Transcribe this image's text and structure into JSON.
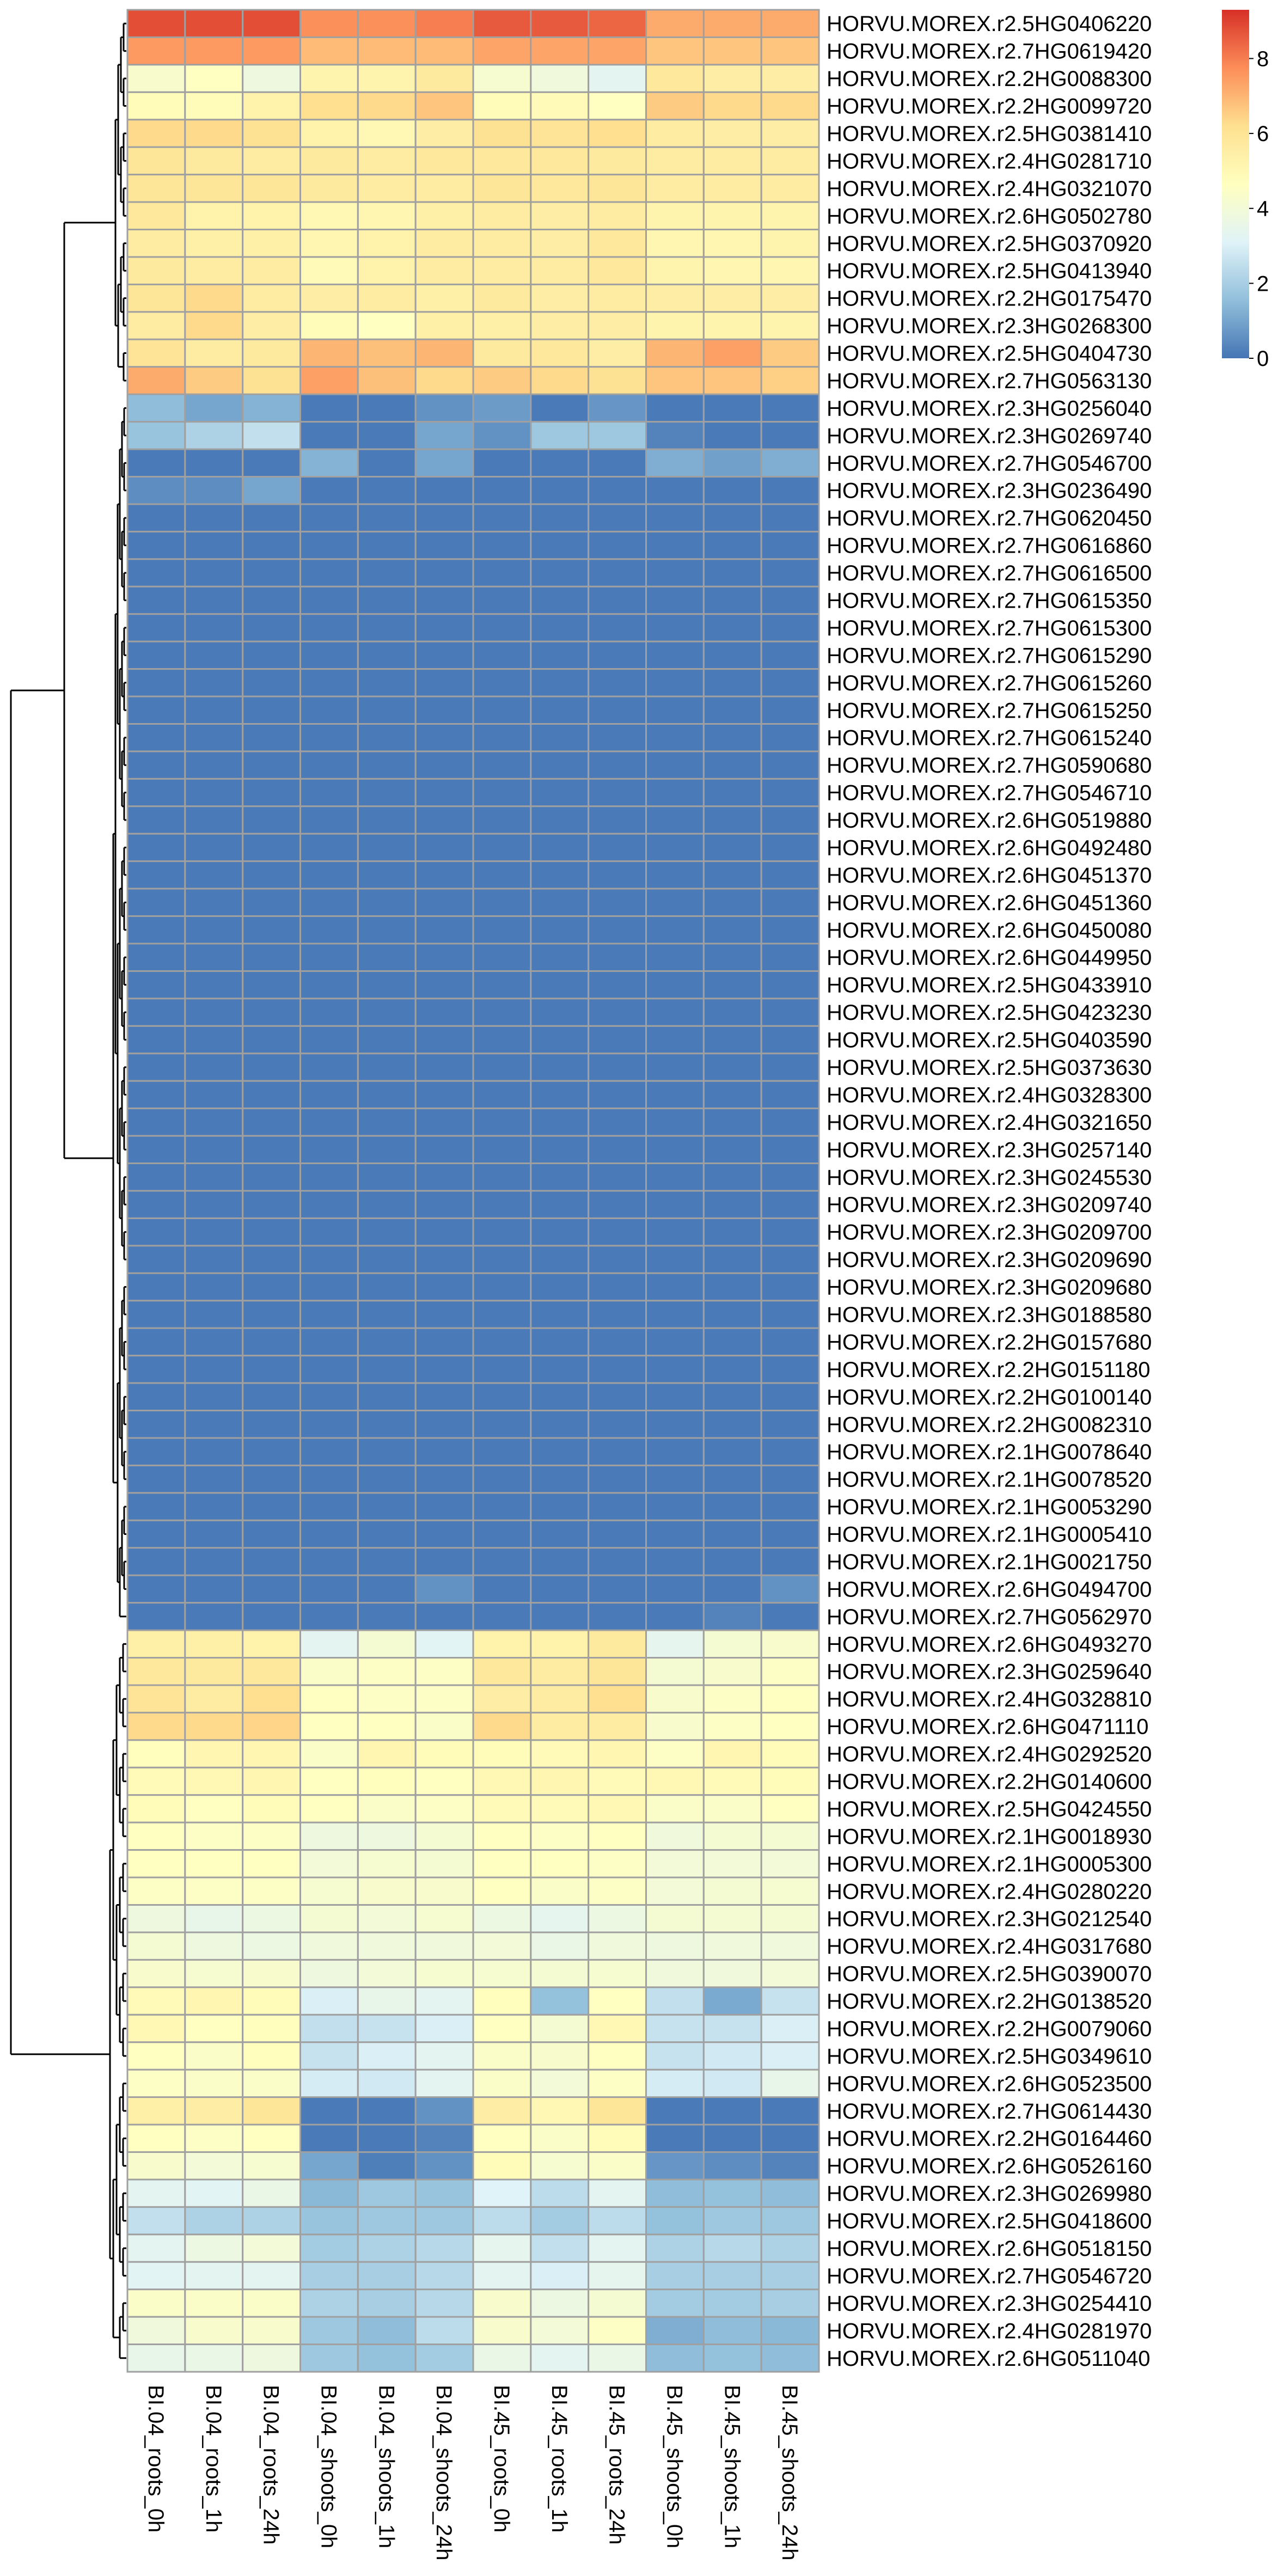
{
  "chart_data": {
    "type": "heatmap",
    "title": "",
    "xlabel": "",
    "ylabel": "",
    "columns": [
      "BI.04_roots_0h",
      "BI.04_roots_1h",
      "BI.04_roots_24h",
      "BI.04_shoots_0h",
      "BI.04_shoots_1h",
      "BI.04_shoots_24h",
      "BI.45_roots_0h",
      "BI.45_roots_1h",
      "BI.45_roots_24h",
      "BI.45_shoots_0h",
      "BI.45_shoots_1h",
      "BI.45_shoots_24h"
    ],
    "rows": [
      "HORVU.MOREX.r2.5HG0406220",
      "HORVU.MOREX.r2.7HG0619420",
      "HORVU.MOREX.r2.2HG0088300",
      "HORVU.MOREX.r2.2HG0099720",
      "HORVU.MOREX.r2.5HG0381410",
      "HORVU.MOREX.r2.4HG0281710",
      "HORVU.MOREX.r2.4HG0321070",
      "HORVU.MOREX.r2.6HG0502780",
      "HORVU.MOREX.r2.5HG0370920",
      "HORVU.MOREX.r2.5HG0413940",
      "HORVU.MOREX.r2.2HG0175470",
      "HORVU.MOREX.r2.3HG0268300",
      "HORVU.MOREX.r2.5HG0404730",
      "HORVU.MOREX.r2.7HG0563130",
      "HORVU.MOREX.r2.3HG0256040",
      "HORVU.MOREX.r2.3HG0269740",
      "HORVU.MOREX.r2.7HG0546700",
      "HORVU.MOREX.r2.3HG0236490",
      "HORVU.MOREX.r2.7HG0620450",
      "HORVU.MOREX.r2.7HG0616860",
      "HORVU.MOREX.r2.7HG0616500",
      "HORVU.MOREX.r2.7HG0615350",
      "HORVU.MOREX.r2.7HG0615300",
      "HORVU.MOREX.r2.7HG0615290",
      "HORVU.MOREX.r2.7HG0615260",
      "HORVU.MOREX.r2.7HG0615250",
      "HORVU.MOREX.r2.7HG0615240",
      "HORVU.MOREX.r2.7HG0590680",
      "HORVU.MOREX.r2.7HG0546710",
      "HORVU.MOREX.r2.6HG0519880",
      "HORVU.MOREX.r2.6HG0492480",
      "HORVU.MOREX.r2.6HG0451370",
      "HORVU.MOREX.r2.6HG0451360",
      "HORVU.MOREX.r2.6HG0450080",
      "HORVU.MOREX.r2.6HG0449950",
      "HORVU.MOREX.r2.5HG0433910",
      "HORVU.MOREX.r2.5HG0423230",
      "HORVU.MOREX.r2.5HG0403590",
      "HORVU.MOREX.r2.5HG0373630",
      "HORVU.MOREX.r2.4HG0328300",
      "HORVU.MOREX.r2.4HG0321650",
      "HORVU.MOREX.r2.3HG0257140",
      "HORVU.MOREX.r2.3HG0245530",
      "HORVU.MOREX.r2.3HG0209740",
      "HORVU.MOREX.r2.3HG0209700",
      "HORVU.MOREX.r2.3HG0209690",
      "HORVU.MOREX.r2.3HG0209680",
      "HORVU.MOREX.r2.3HG0188580",
      "HORVU.MOREX.r2.2HG0157680",
      "HORVU.MOREX.r2.2HG0151180",
      "HORVU.MOREX.r2.2HG0100140",
      "HORVU.MOREX.r2.2HG0082310",
      "HORVU.MOREX.r2.1HG0078640",
      "HORVU.MOREX.r2.1HG0078520",
      "HORVU.MOREX.r2.1HG0053290",
      "HORVU.MOREX.r2.1HG0005410",
      "HORVU.MOREX.r2.1HG0021750",
      "HORVU.MOREX.r2.6HG0494700",
      "HORVU.MOREX.r2.7HG0562970",
      "HORVU.MOREX.r2.6HG0493270",
      "HORVU.MOREX.r2.3HG0259640",
      "HORVU.MOREX.r2.4HG0328810",
      "HORVU.MOREX.r2.6HG0471110",
      "HORVU.MOREX.r2.4HG0292520",
      "HORVU.MOREX.r2.2HG0140600",
      "HORVU.MOREX.r2.5HG0424550",
      "HORVU.MOREX.r2.1HG0018930",
      "HORVU.MOREX.r2.1HG0005300",
      "HORVU.MOREX.r2.4HG0280220",
      "HORVU.MOREX.r2.3HG0212540",
      "HORVU.MOREX.r2.4HG0317680",
      "HORVU.MOREX.r2.5HG0390070",
      "HORVU.MOREX.r2.2HG0138520",
      "HORVU.MOREX.r2.2HG0079060",
      "HORVU.MOREX.r2.5HG0349610",
      "HORVU.MOREX.r2.6HG0523500",
      "HORVU.MOREX.r2.7HG0614430",
      "HORVU.MOREX.r2.2HG0164460",
      "HORVU.MOREX.r2.6HG0526160",
      "HORVU.MOREX.r2.3HG0269980",
      "HORVU.MOREX.r2.5HG0418600",
      "HORVU.MOREX.r2.6HG0518150",
      "HORVU.MOREX.r2.7HG0546720",
      "HORVU.MOREX.r2.3HG0254410",
      "HORVU.MOREX.r2.4HG0281970",
      "HORVU.MOREX.r2.6HG0511040"
    ],
    "values": [
      [
        8.8,
        8.8,
        8.8,
        7.7,
        7.7,
        8.0,
        8.6,
        8.6,
        8.4,
        7.2,
        7.2,
        7.2
      ],
      [
        7.5,
        7.5,
        7.5,
        6.9,
        6.9,
        6.9,
        7.3,
        7.3,
        7.3,
        6.7,
        6.7,
        6.7
      ],
      [
        4.3,
        4.6,
        3.8,
        5.2,
        5.2,
        5.7,
        4.2,
        3.9,
        3.3,
        5.8,
        5.5,
        5.5
      ],
      [
        4.8,
        4.8,
        5.3,
        6.2,
        6.3,
        6.7,
        4.8,
        4.9,
        4.6,
        6.6,
        6.3,
        6.3
      ],
      [
        6.3,
        6.3,
        6.1,
        5.3,
        5.0,
        5.5,
        6.1,
        6.0,
        6.2,
        5.6,
        5.5,
        5.5
      ],
      [
        5.9,
        5.7,
        5.6,
        5.7,
        5.6,
        5.8,
        5.8,
        5.8,
        5.7,
        5.6,
        5.6,
        5.6
      ],
      [
        5.9,
        5.9,
        5.9,
        5.7,
        5.6,
        5.6,
        5.9,
        5.8,
        5.9,
        5.6,
        5.6,
        5.6
      ],
      [
        5.8,
        5.3,
        5.3,
        5.0,
        5.1,
        5.4,
        5.6,
        5.5,
        5.6,
        5.2,
        5.2,
        5.2
      ],
      [
        5.6,
        5.4,
        5.4,
        5.1,
        5.3,
        5.6,
        5.6,
        5.5,
        5.8,
        5.1,
        5.1,
        5.2
      ],
      [
        5.7,
        5.6,
        5.6,
        4.9,
        5.3,
        5.6,
        5.6,
        5.6,
        5.8,
        5.2,
        5.1,
        5.1
      ],
      [
        5.9,
        6.3,
        5.6,
        5.5,
        5.6,
        5.4,
        5.7,
        5.5,
        5.6,
        5.5,
        5.5,
        5.5
      ],
      [
        5.6,
        6.3,
        5.5,
        4.8,
        4.6,
        5.4,
        5.4,
        5.5,
        5.5,
        5.2,
        5.2,
        5.2
      ],
      [
        6.0,
        5.6,
        5.7,
        7.0,
        6.8,
        7.0,
        5.7,
        5.8,
        5.5,
        7.0,
        7.4,
        6.6
      ],
      [
        7.2,
        6.6,
        6.1,
        7.4,
        6.8,
        6.3,
        6.6,
        6.3,
        6.1,
        6.7,
        6.7,
        6.5
      ],
      [
        1.5,
        1.0,
        1.3,
        0.1,
        0.1,
        0.6,
        0.8,
        0.1,
        0.7,
        0.1,
        0.1,
        0.1
      ],
      [
        1.7,
        2.1,
        2.5,
        0.1,
        0.1,
        1.0,
        0.6,
        1.8,
        1.8,
        0.3,
        0.1,
        0.1
      ],
      [
        0.1,
        0.1,
        0.1,
        1.3,
        0.1,
        1.0,
        0.1,
        0.1,
        0.1,
        1.2,
        0.9,
        1.2
      ],
      [
        0.5,
        0.5,
        1.0,
        0.1,
        0.1,
        0.1,
        0.1,
        0.1,
        0.1,
        0.1,
        0.1,
        0.1
      ],
      [
        0.1,
        0.1,
        0.1,
        0.1,
        0.1,
        0.1,
        0.1,
        0.1,
        0.1,
        0.1,
        0.1,
        0.1
      ],
      [
        0.1,
        0.1,
        0.1,
        0.1,
        0.1,
        0.1,
        0.1,
        0.1,
        0.1,
        0.1,
        0.1,
        0.1
      ],
      [
        0.1,
        0.1,
        0.1,
        0.1,
        0.1,
        0.1,
        0.1,
        0.1,
        0.1,
        0.1,
        0.1,
        0.1
      ],
      [
        0.1,
        0.1,
        0.1,
        0.1,
        0.1,
        0.1,
        0.1,
        0.1,
        0.1,
        0.1,
        0.1,
        0.1
      ],
      [
        0.1,
        0.1,
        0.1,
        0.1,
        0.1,
        0.1,
        0.1,
        0.1,
        0.1,
        0.1,
        0.1,
        0.1
      ],
      [
        0.1,
        0.1,
        0.1,
        0.1,
        0.1,
        0.1,
        0.1,
        0.1,
        0.1,
        0.1,
        0.1,
        0.1
      ],
      [
        0.1,
        0.1,
        0.1,
        0.1,
        0.1,
        0.1,
        0.1,
        0.1,
        0.1,
        0.1,
        0.1,
        0.1
      ],
      [
        0.1,
        0.1,
        0.1,
        0.1,
        0.1,
        0.1,
        0.1,
        0.1,
        0.1,
        0.1,
        0.1,
        0.1
      ],
      [
        0.1,
        0.1,
        0.1,
        0.1,
        0.1,
        0.1,
        0.1,
        0.1,
        0.1,
        0.1,
        0.1,
        0.1
      ],
      [
        0.1,
        0.1,
        0.1,
        0.1,
        0.1,
        0.1,
        0.1,
        0.1,
        0.1,
        0.1,
        0.1,
        0.1
      ],
      [
        0.1,
        0.1,
        0.1,
        0.1,
        0.1,
        0.1,
        0.1,
        0.1,
        0.1,
        0.1,
        0.1,
        0.1
      ],
      [
        0.1,
        0.1,
        0.1,
        0.1,
        0.1,
        0.1,
        0.1,
        0.1,
        0.1,
        0.1,
        0.1,
        0.1
      ],
      [
        0.1,
        0.1,
        0.1,
        0.1,
        0.1,
        0.1,
        0.1,
        0.1,
        0.1,
        0.1,
        0.1,
        0.1
      ],
      [
        0.1,
        0.1,
        0.1,
        0.1,
        0.1,
        0.1,
        0.1,
        0.1,
        0.1,
        0.1,
        0.1,
        0.1
      ],
      [
        0.1,
        0.1,
        0.1,
        0.1,
        0.1,
        0.1,
        0.1,
        0.1,
        0.1,
        0.1,
        0.1,
        0.1
      ],
      [
        0.1,
        0.1,
        0.1,
        0.1,
        0.1,
        0.1,
        0.1,
        0.1,
        0.1,
        0.1,
        0.1,
        0.1
      ],
      [
        0.1,
        0.1,
        0.1,
        0.1,
        0.1,
        0.1,
        0.1,
        0.1,
        0.1,
        0.1,
        0.1,
        0.1
      ],
      [
        0.1,
        0.1,
        0.1,
        0.1,
        0.1,
        0.1,
        0.1,
        0.1,
        0.1,
        0.1,
        0.1,
        0.1
      ],
      [
        0.1,
        0.1,
        0.1,
        0.1,
        0.1,
        0.1,
        0.1,
        0.1,
        0.1,
        0.1,
        0.1,
        0.1
      ],
      [
        0.1,
        0.1,
        0.1,
        0.1,
        0.1,
        0.1,
        0.1,
        0.1,
        0.1,
        0.1,
        0.1,
        0.1
      ],
      [
        0.1,
        0.1,
        0.1,
        0.1,
        0.1,
        0.1,
        0.1,
        0.1,
        0.1,
        0.1,
        0.1,
        0.1
      ],
      [
        0.1,
        0.1,
        0.1,
        0.1,
        0.1,
        0.1,
        0.1,
        0.1,
        0.1,
        0.1,
        0.1,
        0.1
      ],
      [
        0.1,
        0.1,
        0.1,
        0.1,
        0.1,
        0.1,
        0.1,
        0.1,
        0.1,
        0.1,
        0.1,
        0.1
      ],
      [
        0.1,
        0.1,
        0.1,
        0.1,
        0.1,
        0.1,
        0.1,
        0.1,
        0.1,
        0.1,
        0.1,
        0.1
      ],
      [
        0.1,
        0.1,
        0.1,
        0.1,
        0.1,
        0.1,
        0.1,
        0.1,
        0.1,
        0.1,
        0.1,
        0.1
      ],
      [
        0.1,
        0.1,
        0.1,
        0.1,
        0.1,
        0.1,
        0.1,
        0.1,
        0.1,
        0.1,
        0.1,
        0.1
      ],
      [
        0.1,
        0.1,
        0.1,
        0.1,
        0.1,
        0.1,
        0.1,
        0.1,
        0.1,
        0.1,
        0.1,
        0.1
      ],
      [
        0.1,
        0.1,
        0.1,
        0.1,
        0.1,
        0.1,
        0.1,
        0.1,
        0.1,
        0.1,
        0.1,
        0.1
      ],
      [
        0.1,
        0.1,
        0.1,
        0.1,
        0.1,
        0.1,
        0.1,
        0.1,
        0.1,
        0.1,
        0.1,
        0.1
      ],
      [
        0.1,
        0.1,
        0.1,
        0.1,
        0.1,
        0.1,
        0.1,
        0.1,
        0.1,
        0.1,
        0.1,
        0.1
      ],
      [
        0.1,
        0.1,
        0.1,
        0.1,
        0.1,
        0.1,
        0.1,
        0.1,
        0.1,
        0.1,
        0.1,
        0.1
      ],
      [
        0.1,
        0.1,
        0.1,
        0.1,
        0.1,
        0.1,
        0.1,
        0.1,
        0.1,
        0.1,
        0.1,
        0.1
      ],
      [
        0.1,
        0.1,
        0.1,
        0.1,
        0.1,
        0.1,
        0.1,
        0.1,
        0.1,
        0.1,
        0.1,
        0.1
      ],
      [
        0.1,
        0.1,
        0.1,
        0.1,
        0.1,
        0.1,
        0.1,
        0.1,
        0.1,
        0.1,
        0.1,
        0.1
      ],
      [
        0.1,
        0.1,
        0.1,
        0.1,
        0.1,
        0.1,
        0.1,
        0.1,
        0.1,
        0.1,
        0.1,
        0.1
      ],
      [
        0.1,
        0.1,
        0.1,
        0.1,
        0.1,
        0.1,
        0.1,
        0.1,
        0.1,
        0.1,
        0.1,
        0.1
      ],
      [
        0.1,
        0.1,
        0.1,
        0.1,
        0.1,
        0.1,
        0.1,
        0.1,
        0.1,
        0.1,
        0.1,
        0.1
      ],
      [
        0.1,
        0.1,
        0.1,
        0.1,
        0.1,
        0.1,
        0.1,
        0.1,
        0.1,
        0.1,
        0.1,
        0.1
      ],
      [
        0.1,
        0.1,
        0.1,
        0.1,
        0.1,
        0.1,
        0.1,
        0.1,
        0.1,
        0.1,
        0.1,
        0.1
      ],
      [
        0.1,
        0.1,
        0.1,
        0.1,
        0.1,
        0.6,
        0.1,
        0.1,
        0.1,
        0.1,
        0.1,
        0.6
      ],
      [
        0.1,
        0.1,
        0.1,
        0.1,
        0.1,
        0.1,
        0.1,
        0.1,
        0.1,
        0.1,
        0.3,
        0.1
      ],
      [
        5.4,
        5.4,
        5.3,
        3.3,
        4.1,
        3.2,
        5.3,
        5.3,
        5.7,
        3.4,
        4.1,
        4.3
      ],
      [
        5.8,
        5.7,
        5.8,
        4.4,
        4.5,
        4.5,
        5.8,
        5.6,
        5.9,
        4.1,
        4.3,
        4.5
      ],
      [
        6.0,
        5.6,
        6.2,
        4.6,
        4.5,
        4.5,
        5.5,
        5.6,
        6.2,
        4.3,
        4.5,
        4.6
      ],
      [
        6.3,
        6.3,
        6.4,
        4.6,
        4.6,
        4.4,
        6.3,
        5.6,
        5.6,
        4.3,
        4.5,
        4.6
      ],
      [
        4.7,
        5.1,
        5.1,
        4.4,
        5.1,
        4.8,
        4.8,
        4.9,
        5.1,
        4.5,
        5.1,
        4.8
      ],
      [
        4.9,
        5.0,
        5.1,
        4.6,
        4.7,
        4.6,
        5.0,
        5.1,
        4.9,
        5.0,
        4.9,
        4.8
      ],
      [
        4.8,
        4.6,
        4.8,
        4.6,
        4.4,
        4.5,
        4.9,
        4.9,
        5.0,
        4.4,
        4.4,
        4.6
      ],
      [
        4.6,
        4.5,
        4.5,
        3.8,
        3.8,
        4.1,
        4.6,
        4.5,
        4.6,
        3.9,
        4.1,
        4.1
      ],
      [
        4.6,
        4.6,
        4.6,
        4.0,
        4.2,
        4.1,
        4.6,
        4.6,
        4.5,
        4.0,
        4.0,
        4.0
      ],
      [
        4.5,
        4.5,
        4.5,
        4.2,
        4.3,
        4.3,
        4.6,
        4.4,
        4.5,
        4.0,
        4.1,
        4.2
      ],
      [
        3.8,
        3.5,
        3.7,
        4.1,
        4.0,
        4.2,
        3.7,
        3.4,
        3.7,
        4.1,
        4.1,
        4.1
      ],
      [
        4.1,
        3.8,
        3.7,
        3.9,
        3.9,
        3.9,
        4.0,
        3.6,
        3.9,
        3.8,
        3.9,
        3.9
      ],
      [
        4.3,
        4.2,
        4.3,
        3.8,
        4.0,
        4.2,
        4.2,
        4.1,
        4.2,
        3.9,
        3.9,
        4.0
      ],
      [
        4.9,
        5.1,
        4.8,
        3.0,
        3.5,
        3.3,
        4.7,
        1.6,
        4.6,
        2.5,
        1.1,
        2.6
      ],
      [
        5.0,
        4.6,
        4.7,
        2.5,
        2.6,
        3.0,
        4.6,
        4.1,
        5.0,
        2.6,
        2.6,
        3.0
      ],
      [
        4.6,
        4.4,
        4.7,
        2.6,
        3.0,
        3.3,
        4.4,
        4.3,
        4.6,
        2.6,
        2.8,
        3.0
      ],
      [
        4.5,
        4.4,
        4.4,
        2.9,
        2.8,
        3.3,
        4.4,
        4.0,
        4.5,
        2.9,
        2.8,
        3.5
      ],
      [
        5.4,
        5.5,
        5.9,
        0.1,
        0.1,
        0.6,
        5.5,
        5.0,
        5.9,
        0.1,
        0.1,
        0.1
      ],
      [
        4.6,
        4.5,
        4.6,
        0.1,
        0.1,
        0.3,
        4.6,
        4.4,
        4.8,
        0.1,
        0.1,
        0.1
      ],
      [
        4.3,
        4.0,
        4.2,
        1.0,
        0.2,
        0.6,
        4.8,
        4.2,
        4.4,
        0.7,
        0.5,
        0.3
      ],
      [
        3.3,
        3.2,
        3.6,
        1.4,
        1.8,
        1.7,
        3.1,
        2.4,
        3.3,
        1.5,
        1.6,
        1.5
      ],
      [
        2.5,
        2.1,
        2.1,
        1.7,
        1.8,
        1.8,
        2.4,
        1.9,
        2.4,
        1.6,
        1.8,
        1.8
      ],
      [
        3.3,
        3.7,
        4.0,
        1.9,
        2.1,
        2.3,
        3.4,
        2.5,
        3.3,
        2.1,
        2.3,
        2.1
      ],
      [
        3.2,
        3.3,
        3.3,
        2.0,
        2.0,
        2.3,
        3.3,
        3.0,
        3.4,
        2.0,
        2.0,
        2.0
      ],
      [
        4.4,
        4.4,
        4.4,
        2.1,
        2.0,
        2.3,
        4.3,
        3.7,
        4.1,
        1.9,
        1.9,
        2.0
      ],
      [
        3.9,
        4.3,
        4.3,
        1.8,
        1.5,
        2.4,
        4.3,
        4.0,
        4.5,
        1.2,
        1.5,
        1.4
      ],
      [
        3.5,
        3.6,
        3.8,
        1.8,
        1.6,
        1.9,
        3.6,
        3.3,
        3.6,
        1.5,
        1.6,
        1.5
      ]
    ],
    "legend_ticks": [
      0,
      2,
      4,
      6,
      8
    ],
    "color_range": [
      0,
      9.3
    ],
    "color_stops": [
      "#4575b4",
      "#91bfdb",
      "#e0f3f8",
      "#ffffbf",
      "#fee090",
      "#fc8d59",
      "#d73027"
    ],
    "cell_border_color": "#a0a0a0",
    "row_dendrogram": true,
    "legend_position": "top-right"
  }
}
